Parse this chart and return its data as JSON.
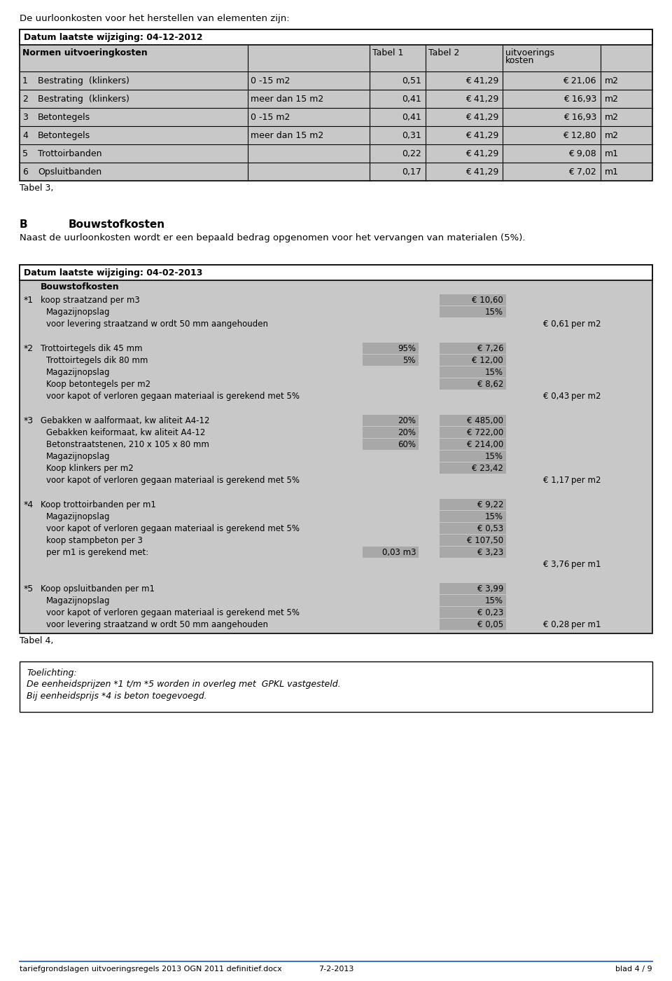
{
  "page_bg": "#ffffff",
  "intro_text": "De uurloonkosten voor het herstellen van elementen zijn:",
  "table1_title": "Datum laatste wijziging: 04-12-2012",
  "table1_rows": [
    [
      "1",
      "Bestrating  (klinkers)",
      "0 -15 m2",
      "0,51",
      "€ 41,29",
      "€ 21,06",
      "m2"
    ],
    [
      "2",
      "Bestrating  (klinkers)",
      "meer dan 15 m2",
      "0,41",
      "€ 41,29",
      "€ 16,93",
      "m2"
    ],
    [
      "3",
      "Betontegels",
      "0 -15 m2",
      "0,41",
      "€ 41,29",
      "€ 16,93",
      "m2"
    ],
    [
      "4",
      "Betontegels",
      "meer dan 15 m2",
      "0,31",
      "€ 41,29",
      "€ 12,80",
      "m2"
    ],
    [
      "5",
      "Trottoirbanden",
      "",
      "0,22",
      "€ 41,29",
      "€ 9,08",
      "m1"
    ],
    [
      "6",
      "Opsluitbanden",
      "",
      "0,17",
      "€ 41,29",
      "€ 7,02",
      "m1"
    ]
  ],
  "tabel3_label": "Tabel 3,",
  "section_b_title": "B",
  "section_b_heading": "Bouwstofkosten",
  "section_b_text": "Naast de uurloonkosten wordt er een bepaald bedrag opgenomen voor het vervangen van materialen (5%).",
  "table2_title": "Datum laatste wijziging: 04-02-2013",
  "table2_subtitle": "Bouwstofkosten",
  "table2_sections": [
    {
      "num": "*1",
      "items": [
        {
          "indent": 0,
          "text": "koop straatzand per m3",
          "pct": "",
          "value": "€ 10,60",
          "total": "",
          "unit": ""
        },
        {
          "indent": 1,
          "text": "Magazijnopslag",
          "pct": "",
          "value": "15%",
          "total": "",
          "unit": ""
        },
        {
          "indent": 1,
          "text": "voor levering straatzand w ordt 50 mm aangehouden",
          "pct": "",
          "value": "",
          "total": "€ 0,61",
          "unit": "per m2"
        }
      ]
    },
    {
      "num": "*2",
      "items": [
        {
          "indent": 0,
          "text": "Trottoirtegels dik 45 mm",
          "pct": "95%",
          "value": "€ 7,26",
          "total": "",
          "unit": ""
        },
        {
          "indent": 1,
          "text": "Trottoirtegels dik 80 mm",
          "pct": "5%",
          "value": "€ 12,00",
          "total": "",
          "unit": ""
        },
        {
          "indent": 1,
          "text": "Magazijnopslag",
          "pct": "",
          "value": "15%",
          "total": "",
          "unit": ""
        },
        {
          "indent": 1,
          "text": "Koop betontegels per m2",
          "pct": "",
          "value": "€ 8,62",
          "total": "",
          "unit": ""
        },
        {
          "indent": 1,
          "text": "voor kapot of verloren gegaan materiaal is gerekend met 5%",
          "pct": "",
          "value": "",
          "total": "€ 0,43",
          "unit": "per m2"
        }
      ]
    },
    {
      "num": "*3",
      "items": [
        {
          "indent": 0,
          "text": "Gebakken w aalformaat, kw aliteit A4-12",
          "pct": "20%",
          "value": "€ 485,00",
          "total": "",
          "unit": ""
        },
        {
          "indent": 1,
          "text": "Gebakken keiformaat, kw aliteit A4-12",
          "pct": "20%",
          "value": "€ 722,00",
          "total": "",
          "unit": ""
        },
        {
          "indent": 1,
          "text": "Betonstraatstenen, 210 x 105 x 80 mm",
          "pct": "60%",
          "value": "€ 214,00",
          "total": "",
          "unit": ""
        },
        {
          "indent": 1,
          "text": "Magazijnopslag",
          "pct": "",
          "value": "15%",
          "total": "",
          "unit": ""
        },
        {
          "indent": 1,
          "text": "Koop klinkers per m2",
          "pct": "",
          "value": "€ 23,42",
          "total": "",
          "unit": ""
        },
        {
          "indent": 1,
          "text": "voor kapot of verloren gegaan materiaal is gerekend met 5%",
          "pct": "",
          "value": "",
          "total": "€ 1,17",
          "unit": "per m2"
        }
      ]
    },
    {
      "num": "*4",
      "items": [
        {
          "indent": 0,
          "text": "Koop trottoirbanden per m1",
          "pct": "",
          "value": "€ 9,22",
          "total": "",
          "unit": ""
        },
        {
          "indent": 1,
          "text": "Magazijnopslag",
          "pct": "",
          "value": "15%",
          "total": "",
          "unit": ""
        },
        {
          "indent": 1,
          "text": "voor kapot of verloren gegaan materiaal is gerekend met 5%",
          "pct": "",
          "value": "€ 0,53",
          "total": "",
          "unit": ""
        },
        {
          "indent": 1,
          "text": "koop stampbeton per 3",
          "pct": "",
          "value": "€ 107,50",
          "total": "",
          "unit": ""
        },
        {
          "indent": 1,
          "text": "per m1 is gerekend met:",
          "pct": "0,03 m3",
          "value": "€ 3,23",
          "total": "",
          "unit": ""
        },
        {
          "indent": 2,
          "text": "",
          "pct": "",
          "value": "",
          "total": "€ 3,76",
          "unit": "per m1"
        }
      ]
    },
    {
      "num": "*5",
      "items": [
        {
          "indent": 0,
          "text": "Koop opsluitbanden per m1",
          "pct": "",
          "value": "€ 3,99",
          "total": "",
          "unit": ""
        },
        {
          "indent": 1,
          "text": "Magazijnopslag",
          "pct": "",
          "value": "15%",
          "total": "",
          "unit": ""
        },
        {
          "indent": 1,
          "text": "voor kapot of verloren gegaan materiaal is gerekend met 5%",
          "pct": "",
          "value": "€ 0,23",
          "total": "",
          "unit": ""
        },
        {
          "indent": 1,
          "text": "voor levering straatzand w ordt 50 mm aangehouden",
          "pct": "",
          "value": "€ 0,05",
          "total": "€ 0,28",
          "unit": "per m1"
        }
      ]
    }
  ],
  "tabel4_label": "Tabel 4,",
  "toelichting_title": "Toelichting:",
  "toelichting_lines": [
    "De eenheidsprijzen *1 t/m *5 worden in overleg met  GPKL vastgesteld.",
    "Bij eenheidsprijs *4 is beton toegevoegd."
  ],
  "footer_left": "tariefgrondslagen uitvoeringsregels 2013 OGN 2011 definitief.docx",
  "footer_mid": "7-2-2013",
  "footer_right": "blad 4 / 9"
}
